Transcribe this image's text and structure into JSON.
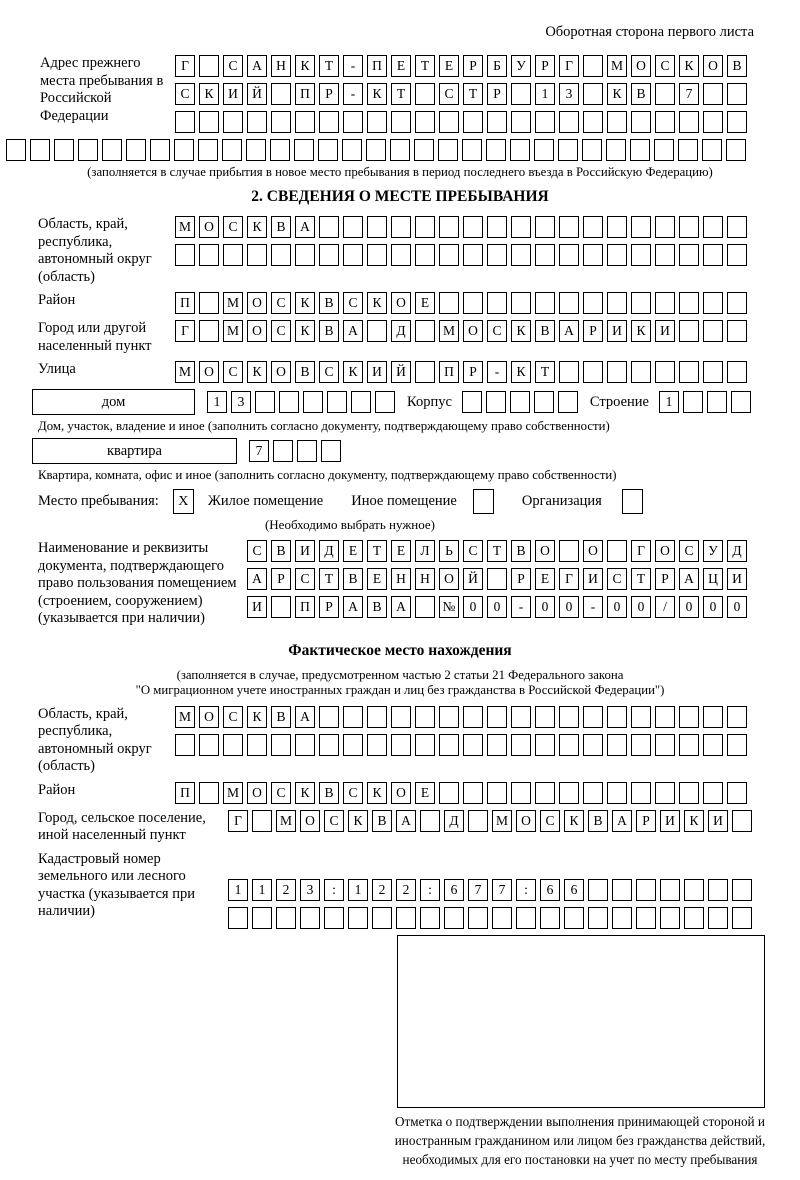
{
  "header": {
    "note": "Оборотная сторона первого листа"
  },
  "prev_address": {
    "label": "Адрес прежнего места пребывания в Российской Федерации",
    "row1": {
      "t": "Г САНКТ-ПЕТЕРБУРГ МОСКОВ",
      "n": 24
    },
    "row2": {
      "t": "СКИЙ ПР-КТ СТР 13 КВ 7",
      "n": 24
    },
    "row3": {
      "t": "",
      "n": 24
    },
    "row_full": {
      "t": "",
      "n": 31
    },
    "caption": "(заполняется в случае прибытия в новое место пребывания в период последнего въезда в Российскую Федерацию)"
  },
  "section2": {
    "title": "2. СВЕДЕНИЯ О МЕСТЕ ПРЕБЫВАНИЯ",
    "oblast": {
      "label": "Область, край, республика, автономный округ (область)",
      "row1": {
        "t": "МОСКВА",
        "n": 24
      },
      "row2": {
        "t": "",
        "n": 24
      }
    },
    "rayon": {
      "label": "Район",
      "row": {
        "t": "П МОСКВСКОЕ",
        "n": 24
      }
    },
    "gorod": {
      "label": "Город или другой населенный пункт",
      "row": {
        "t": "Г МОСКВА Д МОСКВАРИКИ",
        "n": 24
      }
    },
    "ulitsa": {
      "label": "Улица",
      "row": {
        "t": "МОСКОВСКИЙ ПР-КТ",
        "n": 24
      }
    },
    "dom": {
      "box_label": "дом",
      "cells": {
        "t": "13",
        "n": 8
      },
      "korpus_label": "Корпус",
      "korpus_cells": {
        "t": "",
        "n": 5
      },
      "stroenie_label": "Строение",
      "stroenie_cells": {
        "t": "1",
        "n": 4
      },
      "caption": "Дом, участок, владение и иное (заполнить согласно документу, подтверждающему право собственности)"
    },
    "kvartira": {
      "box_label": "квартира",
      "cells": {
        "t": "7",
        "n": 4
      },
      "caption": "Квартира, комната, офис и иное (заполнить согласно документу, подтверждающему право собственности)"
    },
    "place_type": {
      "label": "Место пребывания:",
      "options": [
        {
          "label": "Жилое помещение",
          "checked": "X"
        },
        {
          "label": "Иное помещение",
          "checked": ""
        },
        {
          "label": "Организация",
          "checked": ""
        }
      ],
      "note": "(Необходимо выбрать нужное)"
    },
    "doc": {
      "label": "Наименование и реквизиты документа, подтверждающего право пользования помещением (строением, сооружением) (указывается при наличии)",
      "row1": {
        "t": "СВИДЕТЕЛЬСТВО О ГОСУД",
        "n": 21
      },
      "row2": {
        "t": "АРСТВЕННОЙ РЕГИСТРАЦИ",
        "n": 21
      },
      "row3": {
        "t": "И ПРАВА №00-00-00/000",
        "n": 21
      }
    }
  },
  "fact": {
    "title": "Фактическое место нахождения",
    "caption1": "(заполняется в случае, предусмотренном частью 2 статьи 21 Федерального закона",
    "caption2": "\"О миграционном учете иностранных граждан и лиц без гражданства в Российской Федерации\")",
    "oblast": {
      "label": "Область, край, республика, автономный округ (область)",
      "row1": {
        "t": "МОСКВА",
        "n": 24
      },
      "row2": {
        "t": "",
        "n": 24
      }
    },
    "rayon": {
      "label": "Район",
      "row": {
        "t": "П МОСКВСКОЕ",
        "n": 24
      }
    },
    "gorod": {
      "label": "Город, сельское поселение, иной населенный пункт",
      "row": {
        "t": "Г МОСКВА Д МОСКВАРИКИ",
        "n": 22
      }
    },
    "kadastr": {
      "label": "Кадастровый номер земельного или лесного участка (указывается при наличии)",
      "row1": {
        "t": "1123:122:677:66",
        "n": 22
      },
      "row2": {
        "t": "",
        "n": 22
      }
    },
    "stamp_note": "Отметка о подтверждении выполнения принимающей стороной и иностранным гражданином или лицом без гражданства действий, необходимых для его постановки на учет по месту пребывания"
  }
}
